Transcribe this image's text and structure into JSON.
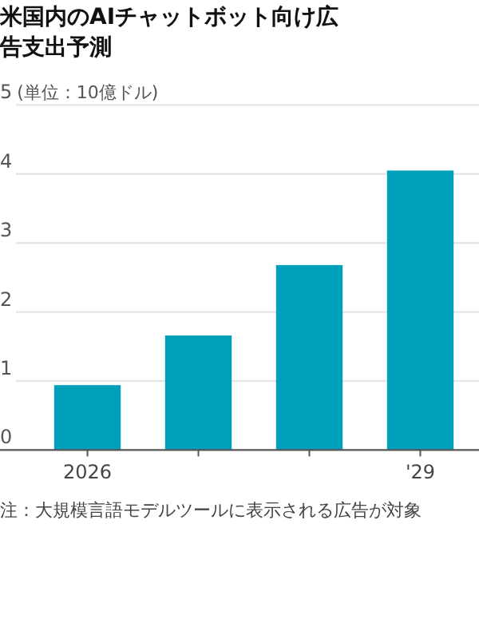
{
  "chart_data": {
    "type": "bar",
    "title": "米国内のAIチャットボット向け広告支出予測",
    "ylabel": "(単位：10億ドル)",
    "categories": [
      "2026",
      null,
      null,
      "'29"
    ],
    "values": [
      0.94,
      1.66,
      2.68,
      4.05
    ],
    "color": "#00a0bb",
    "ylim": [
      0,
      5
    ],
    "yticks": [
      0,
      1,
      2,
      3,
      4,
      5
    ],
    "grid": "y",
    "annotations": [
      "注：大規模言語モデルツールに表示される広告が対象"
    ]
  }
}
